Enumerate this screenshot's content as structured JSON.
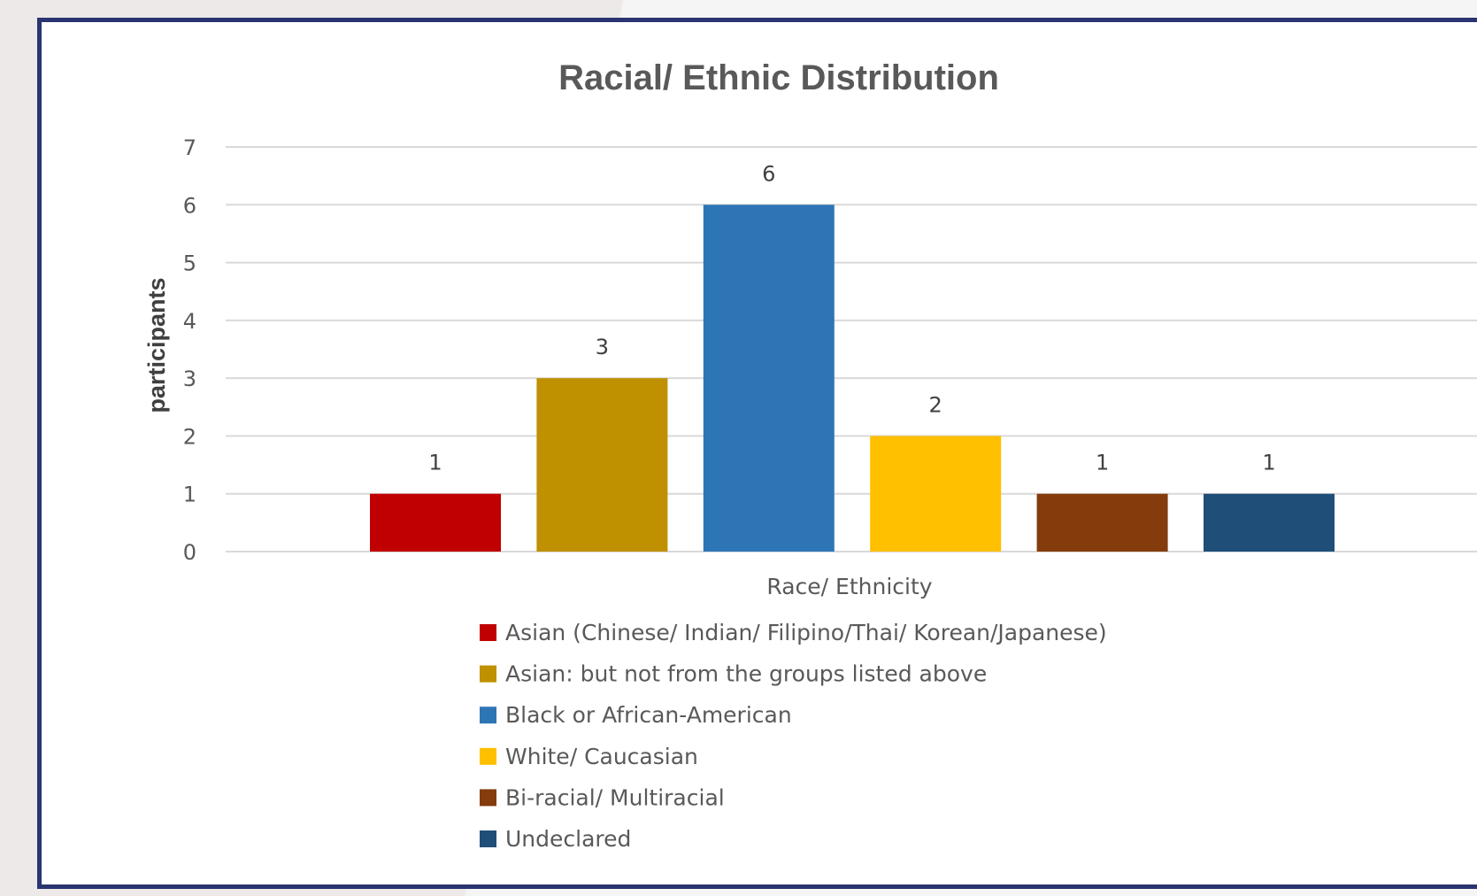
{
  "chart_data": {
    "type": "bar",
    "title": "Racial/ Ethnic Distribution",
    "xlabel": "Race/ Ethnicity",
    "ylabel": "participants",
    "ylim": [
      0,
      7
    ],
    "yticks": [
      0,
      1,
      2,
      3,
      4,
      5,
      6,
      7
    ],
    "grid": true,
    "legend_position": "bottom",
    "categories": [
      "Asian (Chinese/ Indian/ Filipino/Thai/ Korean/Japanese)",
      "Asian: but not from the groups listed above",
      "Black or African-American",
      "White/ Caucasian",
      "Bi-racial/ Multiracial",
      "Undeclared"
    ],
    "values": [
      1,
      3,
      6,
      2,
      1,
      1
    ],
    "colors": [
      "#c00000",
      "#bf9000",
      "#2e75b6",
      "#ffc000",
      "#843c0c",
      "#1f4e79"
    ]
  }
}
